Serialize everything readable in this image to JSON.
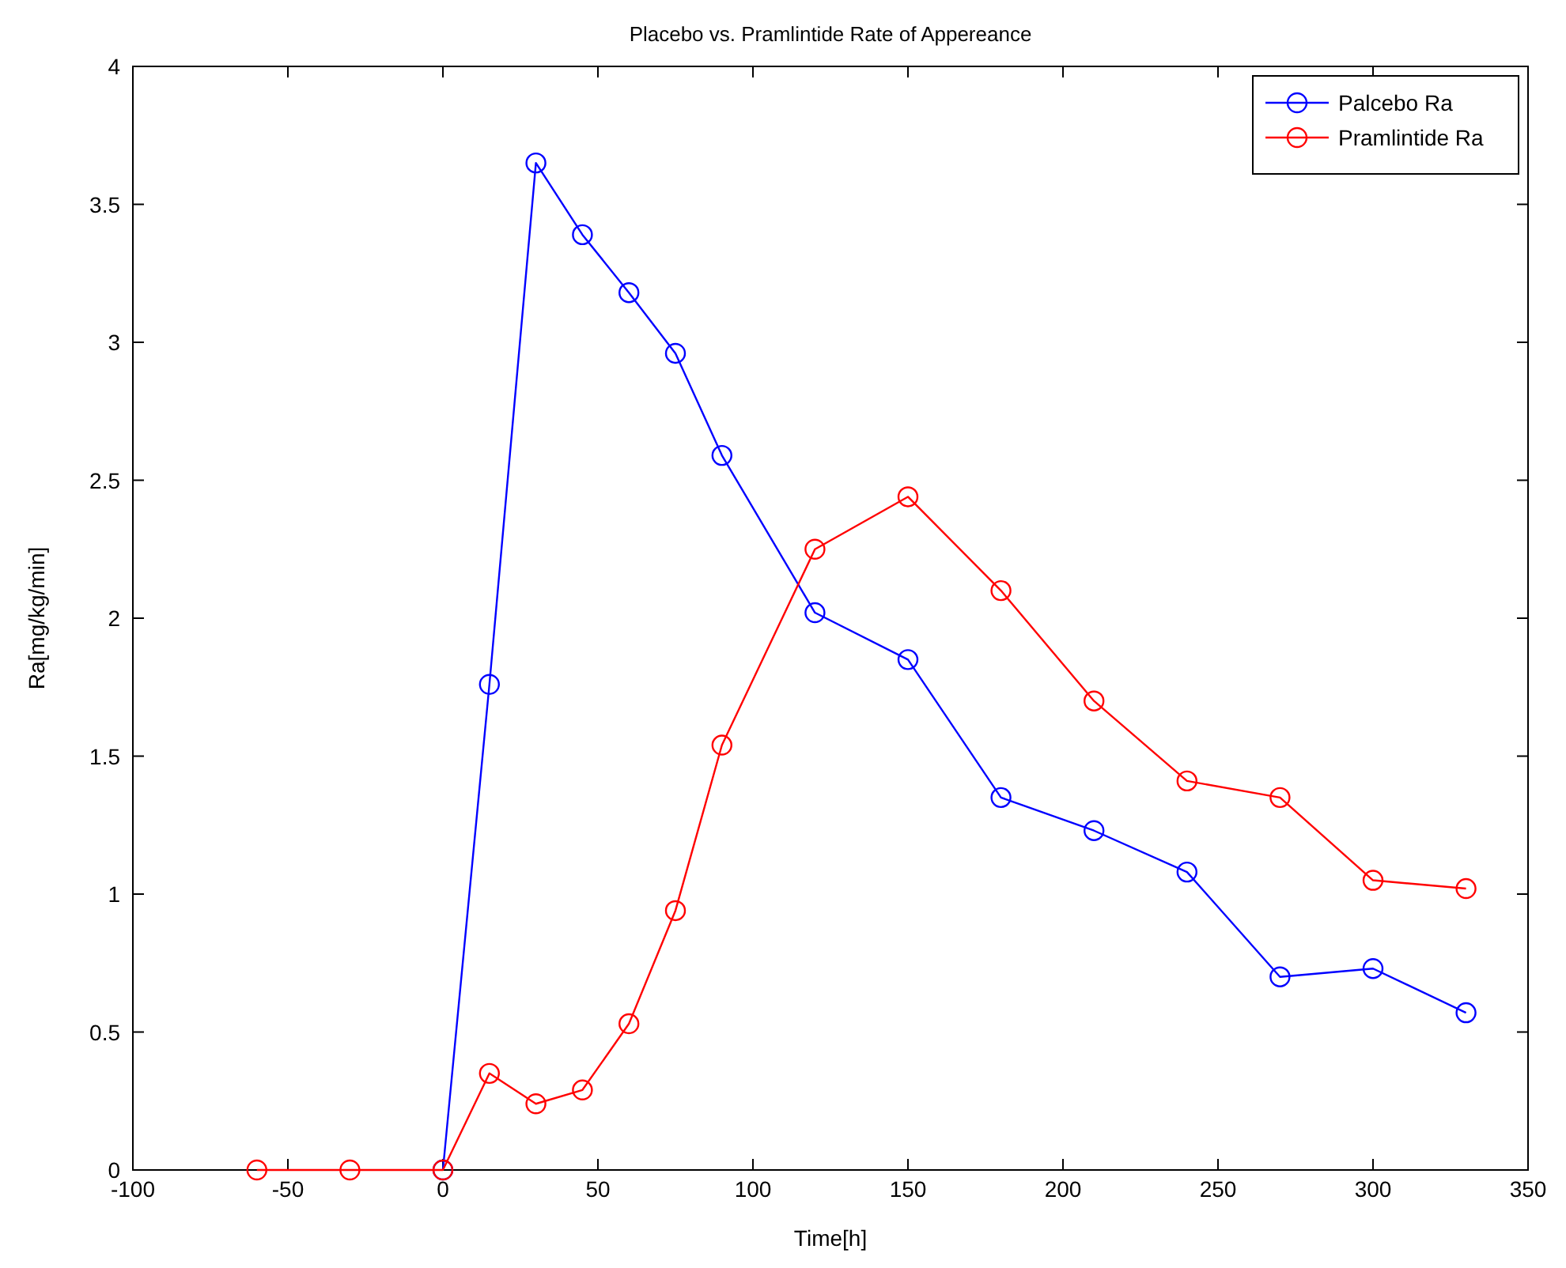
{
  "chart_data": {
    "type": "line",
    "title": "Placebo vs. Pramlintide Rate of Appereance",
    "xlabel": "Time[h]",
    "ylabel": "Ra[mg/kg/min]",
    "xlim": [
      -100,
      350
    ],
    "xticks": [
      -100,
      -50,
      0,
      50,
      100,
      150,
      200,
      250,
      300,
      350
    ],
    "ylim": [
      0,
      4
    ],
    "yticks": [
      0,
      0.5,
      1,
      1.5,
      2,
      2.5,
      3,
      3.5,
      4
    ],
    "grid": false,
    "legend": "top right",
    "marker": "circle",
    "line_style": "solid",
    "series": [
      {
        "name": "Palcebo Ra",
        "color": "#0000ff",
        "x": [
          0,
          15,
          30,
          45,
          60,
          75,
          90,
          120,
          150,
          180,
          210,
          240,
          270,
          300,
          330
        ],
        "values": [
          0,
          1.76,
          3.65,
          3.39,
          3.18,
          2.96,
          2.59,
          2.02,
          1.85,
          1.35,
          1.23,
          1.08,
          0.7,
          0.73,
          0.57
        ]
      },
      {
        "name": "Pramlintide Ra",
        "color": "#ff0000",
        "x": [
          -60,
          -30,
          0,
          15,
          30,
          45,
          60,
          75,
          90,
          120,
          150,
          180,
          210,
          240,
          270,
          300,
          330
        ],
        "values": [
          0,
          0,
          0,
          0.35,
          0.24,
          0.29,
          0.53,
          0.94,
          1.54,
          2.25,
          2.44,
          2.1,
          1.7,
          1.41,
          1.35,
          1.05,
          1.02
        ]
      }
    ]
  }
}
